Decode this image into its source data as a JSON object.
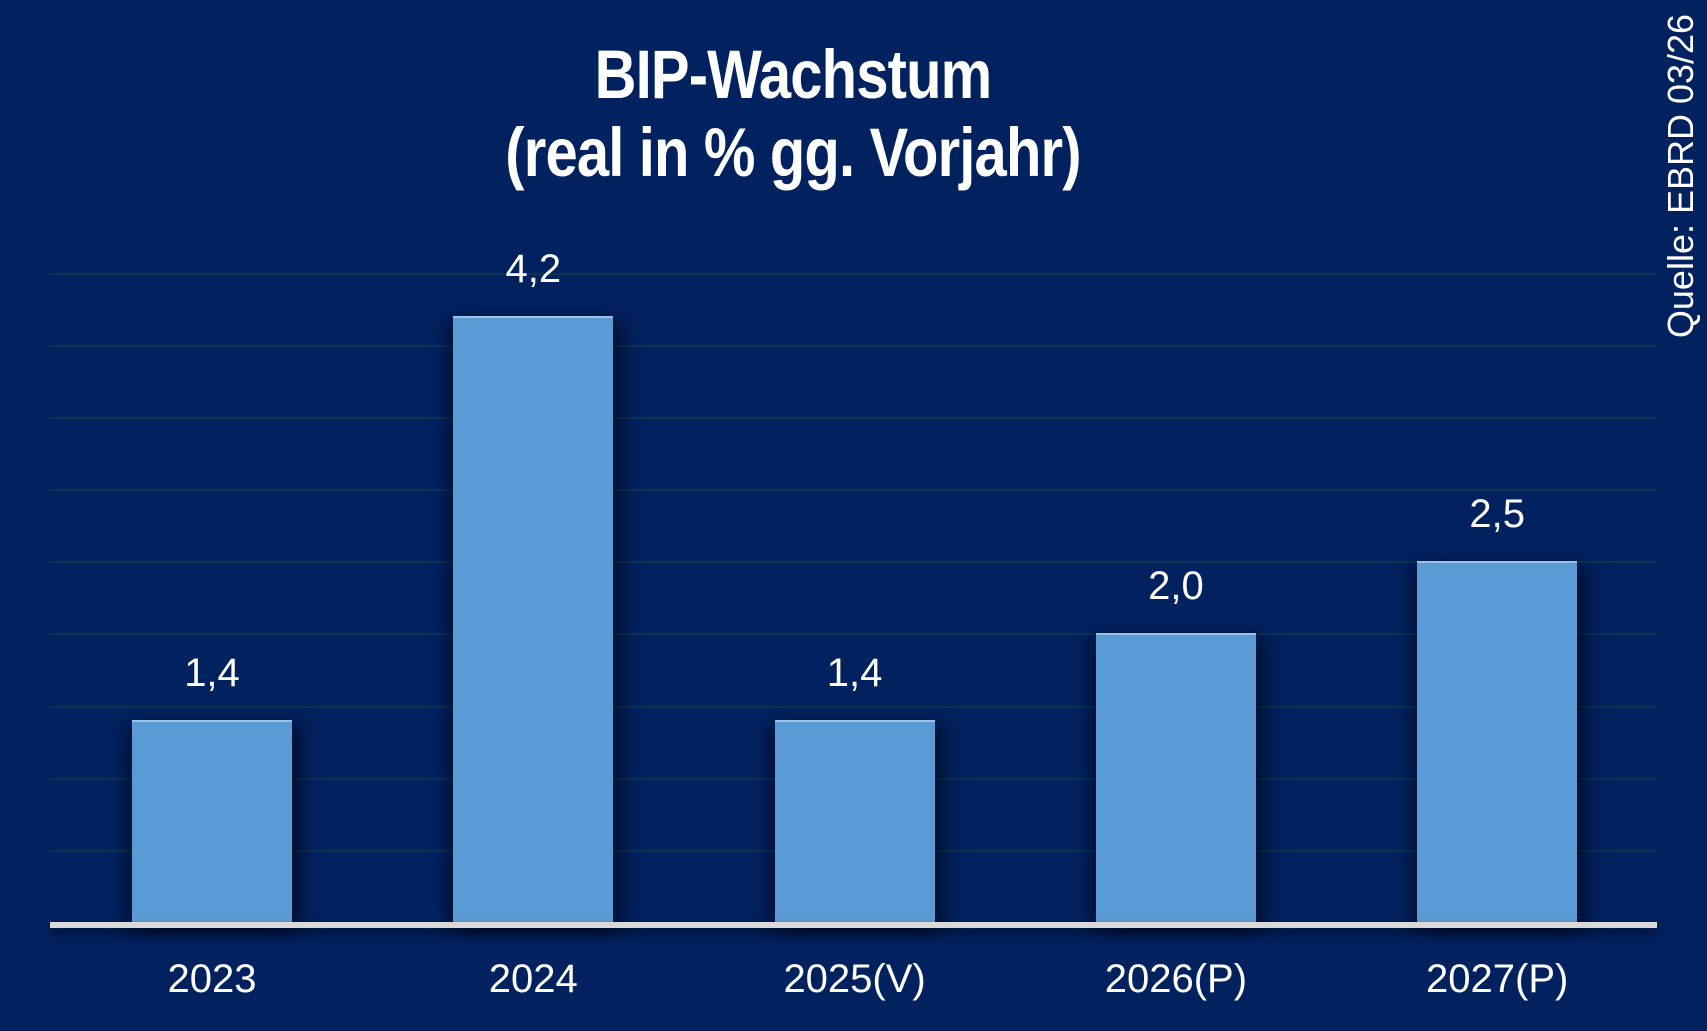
{
  "chart_data": {
    "type": "bar",
    "title": "BIP-Wachstum",
    "subtitle": "(real in % gg. Vorjahr)",
    "source_note": "Quelle: EBRD 03/26",
    "categories": [
      "2023",
      "2024",
      "2025(V)",
      "2026(P)",
      "2027(P)"
    ],
    "values": [
      1.4,
      4.2,
      1.4,
      2.0,
      2.5
    ],
    "value_labels": [
      "1,4",
      "4,2",
      "1,4",
      "2,0",
      "2,5"
    ],
    "ylabel": "",
    "xlabel": "",
    "ylim": [
      0,
      4.5
    ],
    "gridline_step": 0.5,
    "grid": "horizontal-faint",
    "legend": "none",
    "colors": {
      "background": "#02215f",
      "bar_fill": "#5b9bd5",
      "axis_line": "#d9d9d9",
      "gridline": "#0a3450",
      "text": "#ffffff"
    }
  }
}
